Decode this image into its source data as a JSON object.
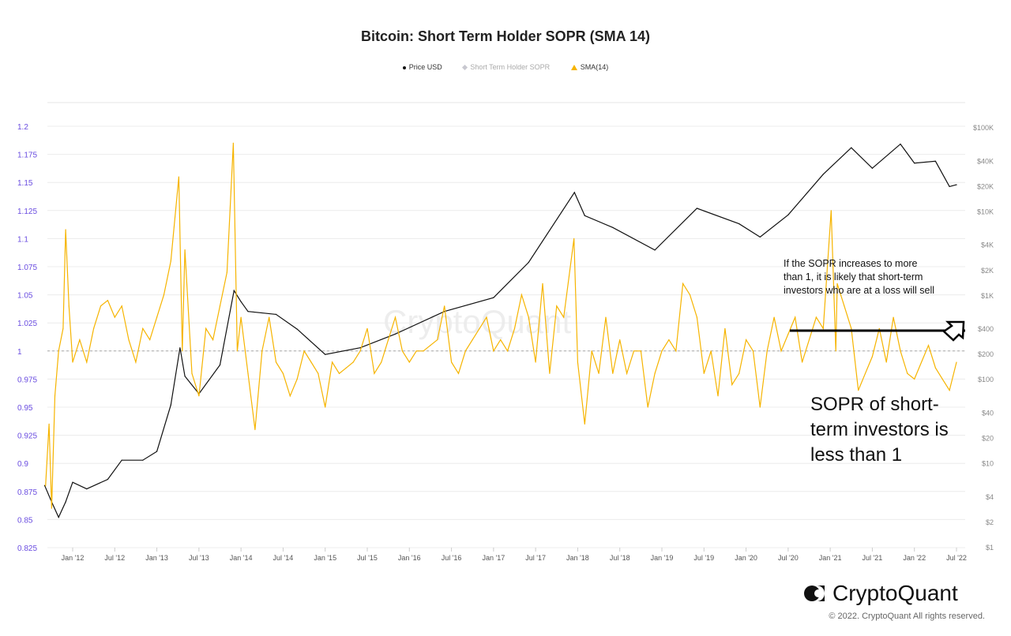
{
  "chart_data": {
    "type": "line",
    "title": "Bitcoin: Short Term Holder SOPR (SMA 14)",
    "legend": [
      {
        "name": "Price USD",
        "color": "#111111",
        "marker": "circle"
      },
      {
        "name": "Short Term Holder SOPR",
        "color": "#c8c8d0",
        "marker": "diamond",
        "hidden": true
      },
      {
        "name": "SMA(14)",
        "color": "#f6b400",
        "marker": "triangle"
      }
    ],
    "legend_position": "top",
    "grid": true,
    "left_axis": {
      "range": [
        0.825,
        1.2
      ],
      "ticks": [
        "1.2",
        "1.175",
        "1.15",
        "1.125",
        "1.1",
        "1.075",
        "1.05",
        "1.025",
        "1",
        "0.975",
        "0.95",
        "0.925",
        "0.9",
        "0.875",
        "0.85",
        "0.825"
      ],
      "color": "#6a4de0"
    },
    "right_axis": {
      "scale": "log",
      "range": [
        1,
        100000
      ],
      "ticks": [
        {
          "v": 100000,
          "label": "$100K"
        },
        {
          "v": 40000,
          "label": "$40K"
        },
        {
          "v": 20000,
          "label": "$20K"
        },
        {
          "v": 10000,
          "label": "$10K"
        },
        {
          "v": 4000,
          "label": "$4K"
        },
        {
          "v": 2000,
          "label": "$2K"
        },
        {
          "v": 1000,
          "label": "$1K"
        },
        {
          "v": 400,
          "label": "$400"
        },
        {
          "v": 200,
          "label": "$200"
        },
        {
          "v": 100,
          "label": "$100"
        },
        {
          "v": 40,
          "label": "$40"
        },
        {
          "v": 20,
          "label": "$20"
        },
        {
          "v": 10,
          "label": "$10"
        },
        {
          "v": 4,
          "label": "$4"
        },
        {
          "v": 2,
          "label": "$2"
        },
        {
          "v": 1,
          "label": "$1"
        }
      ]
    },
    "x_ticks": [
      "Jan '12",
      "Jul '12",
      "Jan '13",
      "Jul '13",
      "Jan '14",
      "Jul '14",
      "Jan '15",
      "Jul '15",
      "Jan '16",
      "Jul '16",
      "Jan '17",
      "Jul '17",
      "Jan '18",
      "Jul '18",
      "Jan '19",
      "Jul '19",
      "Jan '20",
      "Jul '20",
      "Jan '21",
      "Jul '21",
      "Jan '22",
      "Jul '22"
    ],
    "reference_line": 1,
    "series": [
      {
        "name": "Price USD",
        "axis": "right",
        "color": "#111111",
        "points": [
          [
            "2011-09",
            5.5
          ],
          [
            "2011-10",
            3.5
          ],
          [
            "2011-11",
            2.3
          ],
          [
            "2011-12",
            3.5
          ],
          [
            "2012-01",
            6
          ],
          [
            "2012-03",
            5
          ],
          [
            "2012-06",
            6.5
          ],
          [
            "2012-08",
            11
          ],
          [
            "2012-11",
            11
          ],
          [
            "2013-01",
            14
          ],
          [
            "2013-03",
            50
          ],
          [
            "2013-04-10",
            240
          ],
          [
            "2013-05",
            110
          ],
          [
            "2013-07",
            68
          ],
          [
            "2013-10",
            150
          ],
          [
            "2013-12-01",
            1150
          ],
          [
            "2014-01",
            850
          ],
          [
            "2014-02",
            650
          ],
          [
            "2014-06",
            600
          ],
          [
            "2014-09",
            400
          ],
          [
            "2015-01",
            200
          ],
          [
            "2015-06",
            240
          ],
          [
            "2015-11",
            350
          ],
          [
            "2016-06",
            650
          ],
          [
            "2017-01",
            950
          ],
          [
            "2017-06",
            2500
          ],
          [
            "2017-12-17",
            17000
          ],
          [
            "2018-02",
            9000
          ],
          [
            "2018-06",
            6500
          ],
          [
            "2018-12",
            3500
          ],
          [
            "2019-06",
            11000
          ],
          [
            "2019-12",
            7200
          ],
          [
            "2020-03",
            5000
          ],
          [
            "2020-07",
            9200
          ],
          [
            "2020-12",
            28000
          ],
          [
            "2021-04",
            58000
          ],
          [
            "2021-07",
            33000
          ],
          [
            "2021-11",
            64000
          ],
          [
            "2022-01",
            38000
          ],
          [
            "2022-04",
            40000
          ],
          [
            "2022-06",
            20000
          ],
          [
            "2022-07",
            21000
          ]
        ]
      },
      {
        "name": "SMA(14)",
        "axis": "left",
        "color": "#f6b400",
        "points": [
          [
            "2011-09-05",
            0.88
          ],
          [
            "2011-09-20",
            0.935
          ],
          [
            "2011-10-01",
            0.86
          ],
          [
            "2011-10-15",
            0.96
          ],
          [
            "2011-11-01",
            1.0
          ],
          [
            "2011-11-20",
            1.02
          ],
          [
            "2011-12-01",
            1.108
          ],
          [
            "2011-12-15",
            1.04
          ],
          [
            "2012-01",
            0.99
          ],
          [
            "2012-02",
            1.01
          ],
          [
            "2012-03",
            0.99
          ],
          [
            "2012-04",
            1.02
          ],
          [
            "2012-05",
            1.04
          ],
          [
            "2012-06",
            1.045
          ],
          [
            "2012-07",
            1.03
          ],
          [
            "2012-08",
            1.04
          ],
          [
            "2012-09",
            1.01
          ],
          [
            "2012-10",
            0.99
          ],
          [
            "2012-11",
            1.02
          ],
          [
            "2012-12",
            1.01
          ],
          [
            "2013-01",
            1.03
          ],
          [
            "2013-02",
            1.05
          ],
          [
            "2013-03",
            1.08
          ],
          [
            "2013-04-05",
            1.155
          ],
          [
            "2013-04-20",
            1.0
          ],
          [
            "2013-05",
            1.09
          ],
          [
            "2013-06",
            0.98
          ],
          [
            "2013-07",
            0.96
          ],
          [
            "2013-08",
            1.02
          ],
          [
            "2013-09",
            1.01
          ],
          [
            "2013-10",
            1.04
          ],
          [
            "2013-11-01",
            1.07
          ],
          [
            "2013-11-28",
            1.185
          ],
          [
            "2013-12-15",
            1.0
          ],
          [
            "2014-01",
            1.03
          ],
          [
            "2014-02",
            0.98
          ],
          [
            "2014-03",
            0.93
          ],
          [
            "2014-04",
            1.0
          ],
          [
            "2014-05",
            1.03
          ],
          [
            "2014-06",
            0.99
          ],
          [
            "2014-07",
            0.98
          ],
          [
            "2014-08",
            0.96
          ],
          [
            "2014-09",
            0.975
          ],
          [
            "2014-10",
            1.0
          ],
          [
            "2014-11",
            0.99
          ],
          [
            "2014-12",
            0.98
          ],
          [
            "2015-01",
            0.95
          ],
          [
            "2015-02",
            0.99
          ],
          [
            "2015-03",
            0.98
          ],
          [
            "2015-04",
            0.985
          ],
          [
            "2015-05",
            0.99
          ],
          [
            "2015-06",
            1.0
          ],
          [
            "2015-07",
            1.02
          ],
          [
            "2015-08",
            0.98
          ],
          [
            "2015-09",
            0.99
          ],
          [
            "2015-10",
            1.01
          ],
          [
            "2015-11",
            1.03
          ],
          [
            "2015-12",
            1.0
          ],
          [
            "2016-01",
            0.99
          ],
          [
            "2016-02",
            1.0
          ],
          [
            "2016-03",
            1.0
          ],
          [
            "2016-04",
            1.005
          ],
          [
            "2016-05",
            1.01
          ],
          [
            "2016-06",
            1.04
          ],
          [
            "2016-07",
            0.99
          ],
          [
            "2016-08",
            0.98
          ],
          [
            "2016-09",
            1.0
          ],
          [
            "2016-10",
            1.01
          ],
          [
            "2016-11",
            1.02
          ],
          [
            "2016-12",
            1.03
          ],
          [
            "2017-01",
            1.0
          ],
          [
            "2017-02",
            1.01
          ],
          [
            "2017-03",
            1.0
          ],
          [
            "2017-04",
            1.02
          ],
          [
            "2017-05",
            1.05
          ],
          [
            "2017-06",
            1.03
          ],
          [
            "2017-07",
            0.99
          ],
          [
            "2017-08",
            1.06
          ],
          [
            "2017-09",
            0.98
          ],
          [
            "2017-10",
            1.04
          ],
          [
            "2017-11",
            1.03
          ],
          [
            "2017-12-15",
            1.1
          ],
          [
            "2018-01",
            0.99
          ],
          [
            "2018-02",
            0.935
          ],
          [
            "2018-03",
            1.0
          ],
          [
            "2018-04",
            0.98
          ],
          [
            "2018-05",
            1.03
          ],
          [
            "2018-06",
            0.98
          ],
          [
            "2018-07",
            1.01
          ],
          [
            "2018-08",
            0.98
          ],
          [
            "2018-09",
            1.0
          ],
          [
            "2018-10",
            1.0
          ],
          [
            "2018-11",
            0.95
          ],
          [
            "2018-12",
            0.98
          ],
          [
            "2019-01",
            1.0
          ],
          [
            "2019-02",
            1.01
          ],
          [
            "2019-03",
            1.0
          ],
          [
            "2019-04",
            1.06
          ],
          [
            "2019-05",
            1.05
          ],
          [
            "2019-06",
            1.03
          ],
          [
            "2019-07",
            0.98
          ],
          [
            "2019-08",
            1.0
          ],
          [
            "2019-09",
            0.96
          ],
          [
            "2019-10",
            1.02
          ],
          [
            "2019-11",
            0.97
          ],
          [
            "2019-12",
            0.98
          ],
          [
            "2020-01",
            1.01
          ],
          [
            "2020-02",
            1.0
          ],
          [
            "2020-03",
            0.95
          ],
          [
            "2020-04",
            1.0
          ],
          [
            "2020-05",
            1.03
          ],
          [
            "2020-06",
            1.0
          ],
          [
            "2020-07",
            1.015
          ],
          [
            "2020-08",
            1.03
          ],
          [
            "2020-09",
            0.99
          ],
          [
            "2020-10",
            1.01
          ],
          [
            "2020-11",
            1.03
          ],
          [
            "2020-12",
            1.02
          ],
          [
            "2021-01-05",
            1.125
          ],
          [
            "2021-01-25",
            1.0
          ],
          [
            "2021-02",
            1.06
          ],
          [
            "2021-03",
            1.04
          ],
          [
            "2021-04",
            1.02
          ],
          [
            "2021-05",
            0.965
          ],
          [
            "2021-06",
            0.98
          ],
          [
            "2021-07",
            0.995
          ],
          [
            "2021-08",
            1.02
          ],
          [
            "2021-09",
            0.99
          ],
          [
            "2021-10",
            1.03
          ],
          [
            "2021-11",
            1.0
          ],
          [
            "2021-12",
            0.98
          ],
          [
            "2022-01",
            0.975
          ],
          [
            "2022-02",
            0.99
          ],
          [
            "2022-03",
            1.005
          ],
          [
            "2022-04",
            0.985
          ],
          [
            "2022-05",
            0.975
          ],
          [
            "2022-06",
            0.965
          ],
          [
            "2022-07",
            0.99
          ]
        ]
      }
    ],
    "annotations": [
      "If the SOPR increases to more\nthan 1, it is likely that short-term\ninvestors who are at a loss will sell",
      "SOPR of short-\nterm investors is\nless than 1"
    ]
  },
  "watermark": "CryptoQuant",
  "footer": {
    "brand": "CryptoQuant",
    "copyright": "© 2022. CryptoQuant All rights reserved."
  }
}
